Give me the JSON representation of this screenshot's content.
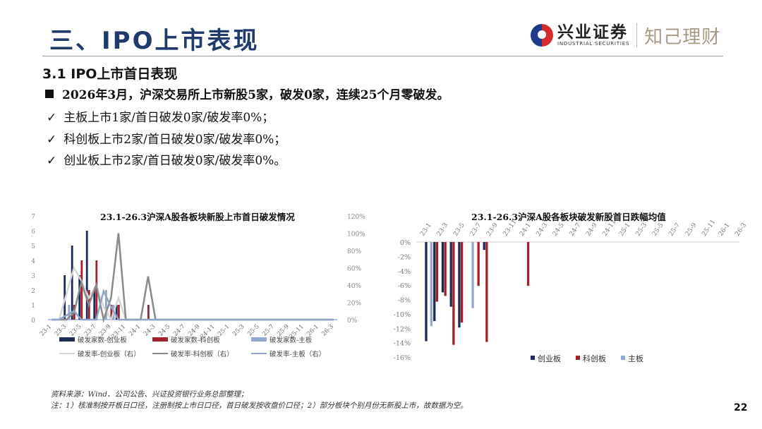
{
  "header": {
    "title": "三、IPO上市表现",
    "logo": {
      "name_cn": "兴业证券",
      "name_en": "INDUSTRIAL SECURITIES",
      "sub_brand": "知己理财",
      "colors": {
        "red": "#d42c2c",
        "blue": "#1f3a8b",
        "sub_brand": "#a89a85"
      }
    }
  },
  "section": {
    "heading": "3.1 IPO上市首日表现",
    "lead": "2026年3月，沪深交易所上市新股5家，破发0家，连续25个月零破发。",
    "points": [
      "主板上市1家/首日破发0家/破发率0%；",
      "科创板上市2家/首日破发0家/破发率0%；",
      "创业板上市2家/首日破发0家/破发率0%。"
    ]
  },
  "footer": {
    "source": "资料来源：Wind、公司公告、兴证投资银行业务总部整理；",
    "note": "注：1）核准制按开板日口径，注册制按上市日口径，首日破发按收盘价口径；2）部分板块个别月份无新股上市，故数据为空。",
    "page_number": "22"
  },
  "chart_data": [
    {
      "type": "bar",
      "title": "23.1-26.3沪深A股各板块新股上市首日破发情况",
      "xlabel": "",
      "ylabel": "破发家数",
      "ylabel_right": "破发率",
      "ylim": [
        0,
        7
      ],
      "ylim_right": [
        0,
        1.2
      ],
      "yticks": [
        "0",
        "1",
        "2",
        "3",
        "4",
        "5",
        "6",
        "7"
      ],
      "yticks_right": [
        "0%",
        "20%",
        "40%",
        "60%",
        "80%",
        "100%",
        "120%"
      ],
      "tick_labels": [
        "23-1",
        "23-3",
        "23-5",
        "23-7",
        "23-9",
        "23-11",
        "24-1",
        "24-3",
        "24-5",
        "24-7",
        "24-9",
        "24-11",
        "25-1",
        "25-3",
        "25-5",
        "25-7",
        "25-9",
        "25-11",
        "26-1",
        "26-3"
      ],
      "categories": [
        "23-1",
        "23-2",
        "23-3",
        "23-4",
        "23-5",
        "23-6",
        "23-7",
        "23-8",
        "23-9",
        "23-10",
        "23-11",
        "23-12",
        "24-1",
        "24-2",
        "24-3",
        "24-4",
        "24-5",
        "24-6",
        "24-7",
        "24-8",
        "24-9",
        "24-10",
        "24-11",
        "24-12",
        "25-1",
        "25-2",
        "25-3",
        "25-4",
        "25-5",
        "25-6",
        "25-7",
        "25-8",
        "25-9",
        "25-10",
        "25-11",
        "25-12",
        "26-1",
        "26-2",
        "26-3"
      ],
      "series": [
        {
          "name": "破发家数-创业板",
          "kind": "bar",
          "axis": "left",
          "color": "#1b2b55",
          "values": [
            0,
            0,
            3,
            5,
            3,
            6,
            2,
            0,
            0,
            1,
            0,
            0,
            0,
            0,
            0,
            0,
            0,
            0,
            0,
            0,
            0,
            0,
            0,
            0,
            0,
            0,
            0,
            0,
            0,
            0,
            0,
            0,
            0,
            0,
            0,
            0,
            0,
            0,
            0
          ]
        },
        {
          "name": "破发家数-科创板",
          "kind": "bar",
          "axis": "left",
          "color": "#a31f2a",
          "values": [
            0,
            0,
            0,
            1,
            4,
            2,
            4,
            0,
            1,
            1,
            0,
            0,
            0,
            1,
            0,
            0,
            0,
            0,
            0,
            0,
            0,
            0,
            0,
            0,
            0,
            0,
            0,
            0,
            0,
            0,
            0,
            0,
            0,
            0,
            0,
            0,
            0,
            0,
            0
          ]
        },
        {
          "name": "破发家数-主板",
          "kind": "bar",
          "axis": "left",
          "color": "#92a8cf",
          "values": [
            0,
            0,
            1,
            0,
            0,
            0,
            0,
            2,
            1,
            0,
            0,
            0,
            0,
            0,
            0,
            0,
            0,
            0,
            0,
            0,
            0,
            0,
            0,
            0,
            0,
            0,
            0,
            0,
            0,
            0,
            0,
            0,
            0,
            0,
            0,
            0,
            0,
            0,
            0
          ]
        },
        {
          "name": "破发率-创业板（右）",
          "kind": "line",
          "axis": "right",
          "color": "#d6d6d6",
          "values": [
            0,
            0,
            0.3,
            0.6,
            0.45,
            0.25,
            0.4,
            0.15,
            0,
            0.25,
            0,
            null,
            null,
            null,
            null,
            null,
            null,
            null,
            null,
            null,
            null,
            null,
            null,
            null,
            null,
            null,
            null,
            null,
            null,
            null,
            null,
            null,
            null,
            null,
            null,
            null,
            null,
            null,
            null
          ]
        },
        {
          "name": "破发率-科创板（右）",
          "kind": "line",
          "axis": "right",
          "color": "#8a8a8a",
          "values": [
            0,
            0,
            0,
            0.08,
            0.43,
            0.17,
            0.4,
            0,
            0.25,
            1.0,
            0,
            0,
            0,
            0.5,
            0,
            0,
            0,
            0,
            0,
            0,
            0,
            0,
            0,
            0,
            0,
            0,
            0,
            0,
            0,
            0,
            0,
            0,
            0,
            0,
            0,
            0,
            0,
            0,
            0
          ]
        },
        {
          "name": "破发率-主板（右）",
          "kind": "line",
          "axis": "right",
          "color": "#8fa3c6",
          "values": [
            0,
            0,
            0.05,
            0.1,
            0,
            0,
            0,
            0.33,
            0.15,
            0,
            0,
            0,
            0,
            0,
            0,
            0,
            0,
            0,
            0,
            0,
            0,
            0,
            0,
            0,
            0,
            0,
            0,
            0,
            0,
            0,
            0,
            0,
            0,
            0,
            0,
            0,
            0,
            0,
            0
          ]
        }
      ],
      "legend_position": "bottom",
      "grid": false
    },
    {
      "type": "bar",
      "title": "23.1-26.3沪深A股各板块破发新股首日跌幅均值",
      "xlabel": "",
      "ylabel": "",
      "ylim": [
        -16,
        0
      ],
      "yticks": [
        "0%",
        "-2%",
        "-4%",
        "-6%",
        "-8%",
        "-10%",
        "-12%",
        "-14%",
        "-16%"
      ],
      "tick_labels": [
        "23-1",
        "23-3",
        "23-5",
        "23-7",
        "23-9",
        "23-11",
        "24-1",
        "24-3",
        "24-5",
        "24-7",
        "24-9",
        "24-11",
        "25-1",
        "25-3",
        "25-5",
        "25-7",
        "25-9",
        "25-11",
        "26-1",
        "26-3"
      ],
      "categories": [
        "23-1",
        "23-2",
        "23-3",
        "23-4",
        "23-5",
        "23-6",
        "23-7",
        "23-8",
        "23-9",
        "23-10",
        "23-11",
        "23-12",
        "24-1",
        "24-2",
        "24-3",
        "24-4",
        "24-5",
        "24-6",
        "24-7",
        "24-8",
        "24-9",
        "24-10",
        "24-11",
        "24-12",
        "25-1",
        "25-2",
        "25-3",
        "25-4",
        "25-5",
        "25-6",
        "25-7",
        "25-8",
        "25-9",
        "25-10",
        "25-11",
        "25-12",
        "26-1",
        "26-2",
        "26-3"
      ],
      "series": [
        {
          "name": "创业板",
          "color": "#1b2b55",
          "values": [
            0,
            -13.8,
            -11.0,
            -7.0,
            -9.0,
            -11.9,
            0,
            0,
            -1.1,
            0,
            0,
            0,
            0,
            0,
            0,
            0,
            0,
            0,
            0,
            0,
            0,
            0,
            0,
            0,
            0,
            0,
            0,
            0,
            0,
            0,
            0,
            0,
            0,
            0,
            0,
            0,
            0,
            0,
            0
          ]
        },
        {
          "name": "科创板",
          "color": "#a31f2a",
          "values": [
            0,
            0,
            -8.3,
            -7.5,
            -14.3,
            -11.2,
            0,
            -6.1,
            -13.9,
            0,
            0,
            0,
            0,
            -6.1,
            0,
            0,
            0,
            0,
            0,
            0,
            0,
            0,
            0,
            0,
            0,
            0,
            0,
            0,
            0,
            0,
            0,
            0,
            0,
            0,
            0,
            0,
            0,
            0,
            0
          ]
        },
        {
          "name": "主板",
          "color": "#92a8cf",
          "values": [
            0,
            -11.7,
            0,
            0,
            0,
            0,
            -9.2,
            0,
            0,
            0,
            0,
            0,
            0,
            0,
            0,
            0,
            0,
            0,
            0,
            0,
            0,
            0,
            0,
            0,
            0,
            0,
            0,
            0,
            0,
            0,
            0,
            0,
            0,
            0,
            0,
            0,
            0,
            0,
            0
          ]
        }
      ],
      "legend_position": "bottom",
      "grid": false
    }
  ]
}
